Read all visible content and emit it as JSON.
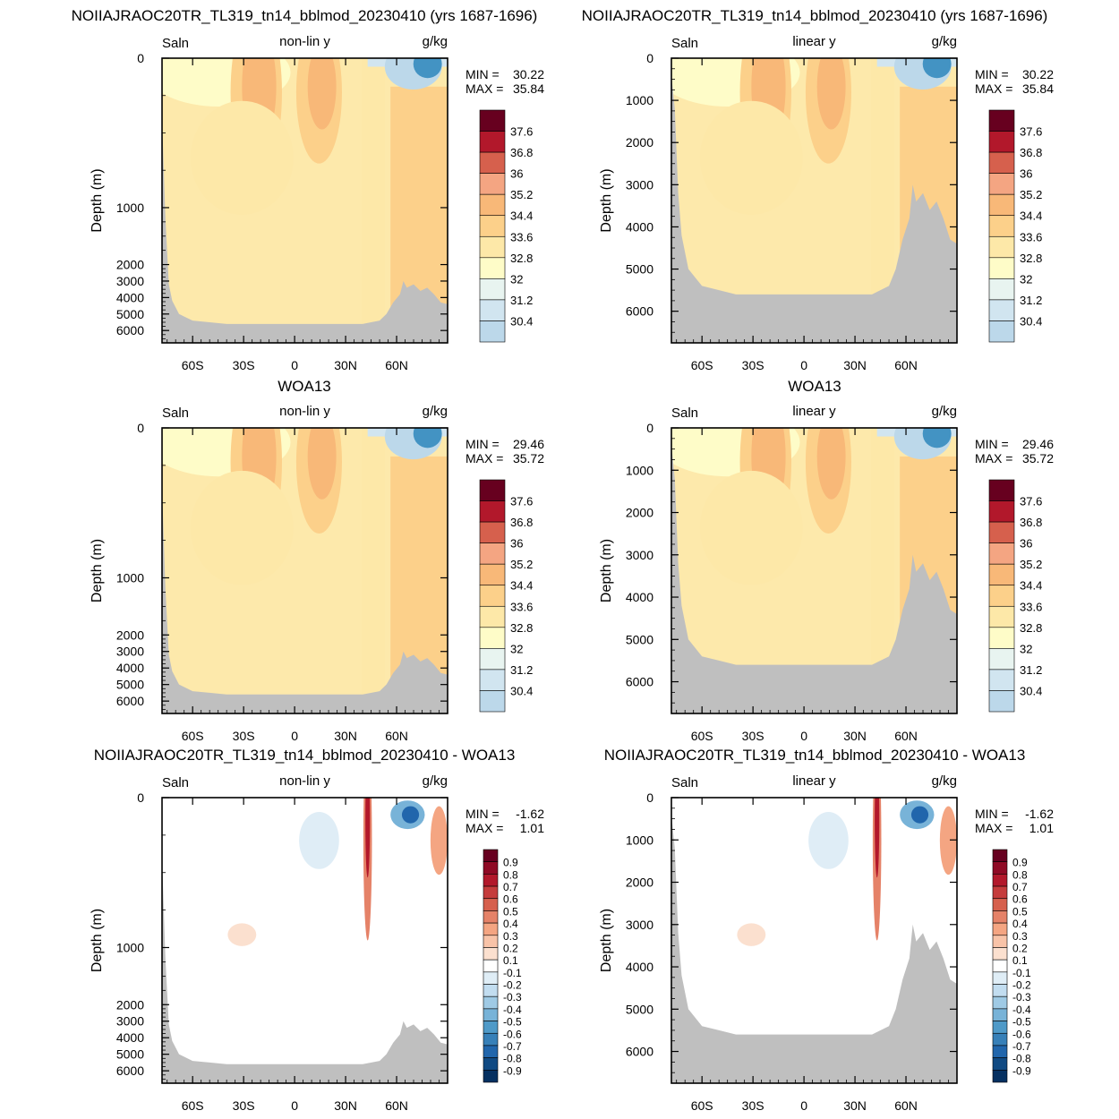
{
  "axis_common": {
    "y_label": "Depth (m)",
    "x_ticks": [
      "60S",
      "30S",
      "0",
      "30N",
      "60N"
    ],
    "nonlin_y_ticks": [
      "0",
      "1000",
      "2000",
      "3000",
      "4000",
      "5000",
      "6000"
    ],
    "lin_y_ticks": [
      "0",
      "1000",
      "2000",
      "3000",
      "4000",
      "5000",
      "6000"
    ]
  },
  "rows": [
    {
      "title_left": "NOIIAJRAOC20TR_TL319_tn14_bblmod_20230410 (yrs 1687-1696)",
      "title_right": "NOIIAJRAOC20TR_TL319_tn14_bblmod_20230410 (yrs 1687-1696)"
    },
    {
      "title_left": "WOA13",
      "title_right": "WOA13"
    },
    {
      "title_left": "NOIIAJRAOC20TR_TL319_tn14_bblmod_20230410 - WOA13",
      "title_right": "NOIIAJRAOC20TR_TL319_tn14_bblmod_20230410 - WOA13"
    }
  ],
  "panels": [
    {
      "variable": "Saln",
      "ytype": "non-lin y",
      "units": "g/kg",
      "min_label": "MIN =",
      "min_value": "30.22",
      "max_label": "MAX =",
      "max_value": "35.84"
    },
    {
      "variable": "Saln",
      "ytype": "linear y",
      "units": "g/kg",
      "min_label": "MIN =",
      "min_value": "30.22",
      "max_label": "MAX =",
      "max_value": "35.84"
    },
    {
      "variable": "Saln",
      "ytype": "non-lin y",
      "units": "g/kg",
      "min_label": "MIN =",
      "min_value": "29.46",
      "max_label": "MAX =",
      "max_value": "35.72"
    },
    {
      "variable": "Saln",
      "ytype": "linear y",
      "units": "g/kg",
      "min_label": "MIN =",
      "min_value": "29.46",
      "max_label": "MAX =",
      "max_value": "35.72"
    },
    {
      "variable": "Saln",
      "ytype": "non-lin y",
      "units": "g/kg",
      "min_label": "MIN =",
      "min_value": "-1.62",
      "max_label": "MAX =",
      "max_value": "1.01"
    },
    {
      "variable": "Saln",
      "ytype": "linear y",
      "units": "g/kg",
      "min_label": "MIN =",
      "min_value": "-1.62",
      "max_label": "MAX =",
      "max_value": "1.01"
    }
  ],
  "colorbars": {
    "salinity": {
      "labels": [
        "37.6",
        "36.8",
        "36",
        "35.2",
        "34.4",
        "33.6",
        "32.8",
        "32",
        "31.2",
        "30.4"
      ],
      "colors": [
        "#67001f",
        "#b2182b",
        "#d6604d",
        "#f4a582",
        "#f8b878",
        "#fcd08a",
        "#fde8a8",
        "#fefcc8",
        "#e8f4f0",
        "#d1e5f0",
        "#bcd8ea",
        "#92c5de",
        "#6fa8d0",
        "#4393c3",
        "#3162a8",
        "#2b3a7e"
      ]
    },
    "difference": {
      "labels": [
        "0.9",
        "0.8",
        "0.7",
        "0.6",
        "0.5",
        "0.4",
        "0.3",
        "0.2",
        "0.1",
        "-0.1",
        "-0.2",
        "-0.3",
        "-0.4",
        "-0.5",
        "-0.6",
        "-0.7",
        "-0.8",
        "-0.9"
      ],
      "colors": [
        "#67001f",
        "#8f0a25",
        "#b2182b",
        "#c53c3c",
        "#d6604d",
        "#e58268",
        "#f4a582",
        "#f8c3a8",
        "#fbe0cf",
        "#ffffff",
        "#dfedf6",
        "#c2ddf0",
        "#9fcae5",
        "#78b3d8",
        "#4f9ac8",
        "#3780b8",
        "#2166ac",
        "#104a83",
        "#053061"
      ]
    }
  },
  "colors": {
    "land": "#bfbfbf",
    "background_diff": "#ffffff"
  },
  "chart_data": {
    "type": "heatmap",
    "variable": "Saln",
    "units": "g/kg",
    "x_range_deg_lat": [
      -78,
      90
    ],
    "y_range_depth_m": [
      0,
      6750
    ],
    "panels": [
      {
        "field": "model",
        "y_scale": "non-linear",
        "min": 30.22,
        "max": 35.84
      },
      {
        "field": "model",
        "y_scale": "linear",
        "min": 30.22,
        "max": 35.84
      },
      {
        "field": "WOA13",
        "y_scale": "non-linear",
        "min": 29.46,
        "max": 35.72
      },
      {
        "field": "WOA13",
        "y_scale": "linear",
        "min": 29.46,
        "max": 35.72
      },
      {
        "field": "model - WOA13",
        "y_scale": "non-linear",
        "min": -1.62,
        "max": 1.01
      },
      {
        "field": "model - WOA13",
        "y_scale": "linear",
        "min": -1.62,
        "max": 1.01
      }
    ],
    "salinity_levels": [
      30.4,
      31.2,
      32,
      32.8,
      33.6,
      34.4,
      35.2,
      36,
      36.8,
      37.6
    ],
    "difference_levels": [
      -0.9,
      -0.8,
      -0.7,
      -0.6,
      -0.5,
      -0.4,
      -0.3,
      -0.2,
      -0.1,
      0.1,
      0.2,
      0.3,
      0.4,
      0.5,
      0.6,
      0.7,
      0.8,
      0.9
    ]
  }
}
